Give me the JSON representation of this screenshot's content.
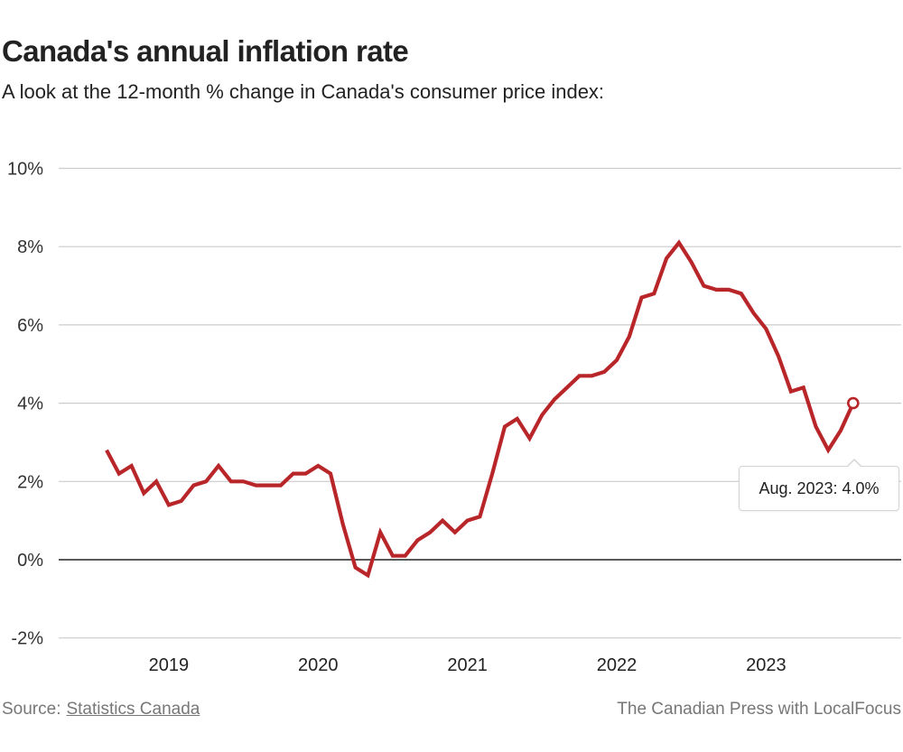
{
  "header": {
    "title": "Canada's annual inflation rate",
    "subtitle": "A look at the 12-month % change in Canada's consumer price index:"
  },
  "footer": {
    "source_label": "Source:",
    "source_link": "Statistics Canada",
    "credit": "The Canadian Press with LocalFocus"
  },
  "tooltip": {
    "text": "Aug. 2023: 4.0%"
  },
  "colors": {
    "line": "#b8262a",
    "grid": "#cccccc",
    "zero_line": "#222222"
  },
  "chart_data": {
    "type": "line",
    "title": "Canada's annual inflation rate",
    "subtitle": "A look at the 12-month % change in Canada's consumer price index:",
    "xlabel": "",
    "ylabel": "",
    "ylim": [
      -2,
      10
    ],
    "yticks": [
      -2,
      0,
      2,
      4,
      6,
      8,
      10
    ],
    "ytick_labels": [
      "-2%",
      "0%",
      "2%",
      "4%",
      "6%",
      "8%",
      "10%"
    ],
    "xticks": [
      "2019",
      "2020",
      "2021",
      "2022",
      "2023"
    ],
    "xtick_month_index": [
      5,
      17,
      29,
      41,
      53
    ],
    "grid": true,
    "legend": "none",
    "start": "2018-08",
    "end": "2023-08",
    "series": [
      {
        "name": "12-month % change in CPI",
        "x": [
          "2018-08",
          "2018-09",
          "2018-10",
          "2018-11",
          "2018-12",
          "2019-01",
          "2019-02",
          "2019-03",
          "2019-04",
          "2019-05",
          "2019-06",
          "2019-07",
          "2019-08",
          "2019-09",
          "2019-10",
          "2019-11",
          "2019-12",
          "2020-01",
          "2020-02",
          "2020-03",
          "2020-04",
          "2020-05",
          "2020-06",
          "2020-07",
          "2020-08",
          "2020-09",
          "2020-10",
          "2020-11",
          "2020-12",
          "2021-01",
          "2021-02",
          "2021-03",
          "2021-04",
          "2021-05",
          "2021-06",
          "2021-07",
          "2021-08",
          "2021-09",
          "2021-10",
          "2021-11",
          "2021-12",
          "2022-01",
          "2022-02",
          "2022-03",
          "2022-04",
          "2022-05",
          "2022-06",
          "2022-07",
          "2022-08",
          "2022-09",
          "2022-10",
          "2022-11",
          "2022-12",
          "2023-01",
          "2023-02",
          "2023-03",
          "2023-04",
          "2023-05",
          "2023-06",
          "2023-07",
          "2023-08"
        ],
        "values": [
          2.8,
          2.2,
          2.4,
          1.7,
          2.0,
          1.4,
          1.5,
          1.9,
          2.0,
          2.4,
          2.0,
          2.0,
          1.9,
          1.9,
          1.9,
          2.2,
          2.2,
          2.4,
          2.2,
          0.9,
          -0.2,
          -0.4,
          0.7,
          0.1,
          0.1,
          0.5,
          0.7,
          1.0,
          0.7,
          1.0,
          1.1,
          2.2,
          3.4,
          3.6,
          3.1,
          3.7,
          4.1,
          4.4,
          4.7,
          4.7,
          4.8,
          5.1,
          5.7,
          6.7,
          6.8,
          7.7,
          8.1,
          7.6,
          7.0,
          6.9,
          6.9,
          6.8,
          6.3,
          5.9,
          5.2,
          4.3,
          4.4,
          3.4,
          2.8,
          3.3,
          4.0
        ]
      }
    ],
    "annotations": [
      {
        "label": "Aug. 2023: 4.0%",
        "x": "2023-08",
        "y": 4.0
      }
    ]
  }
}
